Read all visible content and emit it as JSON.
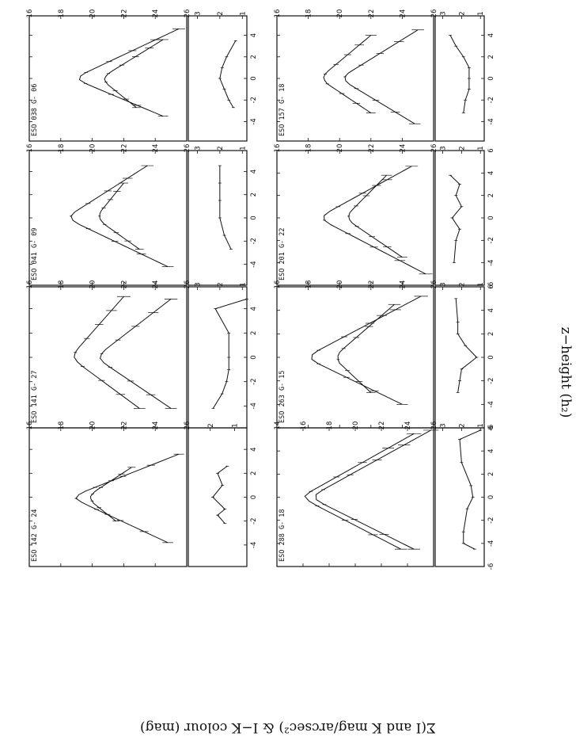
{
  "figure": {
    "xlabel": "z−height (h₂)",
    "ylabel": "Σ(I and K mag/arcsec²) & I−K colour (mag)"
  },
  "chart_data": [
    {
      "type": "line",
      "galaxy": "ESO 038 G- 06",
      "x_ticks": [
        -4,
        -2,
        0,
        2,
        4
      ],
      "xlim": [
        -5.8,
        5.8
      ],
      "top": {
        "ylim": [
          16,
          26
        ],
        "y_ticks": [
          16,
          18,
          20,
          22,
          24,
          26
        ],
        "ylim_inverted": true,
        "series": [
          {
            "peak": 18.8,
            "left": 24.5,
            "right": 25.5,
            "xmin": -3.5,
            "xmax": 4.6
          },
          {
            "peak": 20.5,
            "left": 22.8,
            "right": 24.5,
            "xmin": -2.7,
            "xmax": 3.6
          }
        ]
      },
      "bottom": {
        "ylim": [
          0.8,
          3.4
        ],
        "y_ticks": [
          1,
          2,
          3
        ],
        "colour": [
          [
            -2.7,
            1.4
          ],
          [
            -2,
            1.6
          ],
          [
            -1,
            1.8
          ],
          [
            0,
            2.0
          ],
          [
            1,
            1.9
          ],
          [
            2,
            1.7
          ],
          [
            3.5,
            1.3
          ]
        ]
      }
    },
    {
      "type": "line",
      "galaxy": "ESO 041 G- 09",
      "x_ticks": [
        -4,
        -2,
        0,
        2,
        4
      ],
      "xlim": [
        -5.8,
        5.8
      ],
      "top": {
        "ylim": [
          16,
          26
        ],
        "y_ticks": [
          16,
          18,
          20,
          22,
          24,
          26
        ],
        "ylim_inverted": true,
        "series": [
          {
            "peak": 18.3,
            "left": 24.8,
            "right": 23.5,
            "xmin": -4.2,
            "xmax": 4.5
          },
          {
            "peak": 20.2,
            "left": 23.0,
            "right": 22.0,
            "xmin": -2.7,
            "xmax": 3.0
          }
        ]
      },
      "bottom": {
        "ylim": [
          0.8,
          3.4
        ],
        "y_ticks": [
          1,
          2,
          3
        ],
        "colour": [
          [
            -2.7,
            1.5
          ],
          [
            -1.5,
            1.8
          ],
          [
            0,
            2.0
          ],
          [
            1.5,
            2.0
          ],
          [
            3,
            2.0
          ],
          [
            4.5,
            2.0
          ]
        ]
      }
    },
    {
      "type": "line",
      "galaxy": "ESO 141 G- 27",
      "x_ticks": [
        -4,
        -2,
        0,
        2,
        4
      ],
      "xlim": [
        -5.8,
        5.8
      ],
      "top": {
        "ylim": [
          16,
          26
        ],
        "y_ticks": [
          16,
          18,
          20,
          22,
          24,
          26
        ],
        "ylim_inverted": true,
        "series": [
          {
            "peak": 18.6,
            "left": 23.0,
            "right": 22.0,
            "xmin": -4.2,
            "xmax": 5.0
          },
          {
            "peak": 20.2,
            "left": 25.0,
            "right": 25.0,
            "xmin": -4.2,
            "xmax": 4.8
          }
        ]
      },
      "bottom": {
        "ylim": [
          0.8,
          3.4
        ],
        "y_ticks": [
          1,
          2,
          3
        ],
        "colour": [
          [
            -4.2,
            2.3
          ],
          [
            -3,
            1.9
          ],
          [
            -2,
            1.7
          ],
          [
            -1,
            1.6
          ],
          [
            0,
            1.6
          ],
          [
            2,
            1.6
          ],
          [
            4,
            2.2
          ],
          [
            4.8,
            0.8
          ]
        ]
      }
    },
    {
      "type": "line",
      "galaxy": "ESO 142 G- 24",
      "x_ticks": [
        -4,
        -2,
        0,
        2,
        4
      ],
      "xlim": [
        -5.8,
        5.8
      ],
      "top": {
        "ylim": [
          16,
          26
        ],
        "y_ticks": [
          16,
          18,
          20,
          22,
          24,
          26
        ],
        "ylim_inverted": true,
        "series": [
          {
            "peak": 18.6,
            "left": 24.8,
            "right": 25.5,
            "xmin": -3.8,
            "xmax": 3.6
          },
          {
            "peak": 19.6,
            "left": 21.5,
            "right": 22.5,
            "xmin": -2.0,
            "xmax": 2.5
          }
        ]
      },
      "bottom": {
        "ylim": [
          0.5,
          2.9
        ],
        "y_ticks": [
          1,
          2
        ],
        "colour": [
          [
            -2.2,
            1.4
          ],
          [
            -1.5,
            1.7
          ],
          [
            -1,
            1.4
          ],
          [
            0,
            1.9
          ],
          [
            1,
            1.5
          ],
          [
            2,
            1.7
          ],
          [
            2.6,
            1.3
          ]
        ]
      }
    },
    {
      "type": "line",
      "galaxy": "ESO 157 G- 18",
      "x_ticks": [
        -4,
        -2,
        0,
        2,
        4
      ],
      "xlim": [
        -5.8,
        5.8
      ],
      "top": {
        "ylim": [
          16,
          26
        ],
        "y_ticks": [
          16,
          18,
          20,
          22,
          24,
          26
        ],
        "ylim_inverted": true,
        "series": [
          {
            "peak": 18.7,
            "left": 22.0,
            "right": 22.0,
            "xmin": -3.2,
            "xmax": 4.0
          },
          {
            "peak": 20.0,
            "left": 24.8,
            "right": 25.0,
            "xmin": -4.2,
            "xmax": 4.5
          }
        ]
      },
      "bottom": {
        "ylim": [
          0.8,
          3.4
        ],
        "y_ticks": [
          1,
          2,
          3
        ],
        "colour": [
          [
            -3.2,
            1.9
          ],
          [
            -2,
            1.8
          ],
          [
            -1,
            1.6
          ],
          [
            0,
            1.6
          ],
          [
            1,
            1.6
          ],
          [
            2,
            1.9
          ],
          [
            3,
            2.3
          ],
          [
            4,
            2.6
          ]
        ]
      }
    },
    {
      "type": "line",
      "galaxy": "ESO 201 G- 22",
      "x_ticks": [
        -6,
        -4,
        -2,
        0,
        2,
        4,
        6
      ],
      "xlim": [
        -6,
        6
      ],
      "top": {
        "ylim": [
          16,
          26
        ],
        "y_ticks": [
          16,
          18,
          20,
          22,
          24,
          26
        ],
        "ylim_inverted": true,
        "series": [
          {
            "peak": 18.6,
            "left": 25.5,
            "right": 24.6,
            "xmin": -5.0,
            "xmax": 4.6
          },
          {
            "peak": 20.3,
            "left": 24.0,
            "right": 23.0,
            "xmin": -3.5,
            "xmax": 3.8
          }
        ]
      },
      "bottom": {
        "ylim": [
          0.8,
          3.4
        ],
        "y_ticks": [
          1,
          2,
          3
        ],
        "colour": [
          [
            -4,
            2.4
          ],
          [
            -2,
            2.3
          ],
          [
            -1,
            2.1
          ],
          [
            0,
            2.5
          ],
          [
            1,
            2.0
          ],
          [
            2,
            2.3
          ],
          [
            3,
            2.1
          ],
          [
            3.8,
            2.6
          ]
        ]
      }
    },
    {
      "type": "line",
      "galaxy": "ESO 263 G- 15",
      "x_ticks": [
        -6,
        -4,
        -2,
        0,
        2,
        4,
        6
      ],
      "xlim": [
        -6,
        6
      ],
      "top": {
        "ylim": [
          16,
          26
        ],
        "y_ticks": [
          16,
          18,
          20,
          22,
          24,
          26
        ],
        "ylim_inverted": true,
        "series": [
          {
            "peak": 17.8,
            "left": 24.0,
            "right": 25.2,
            "xmin": -4.0,
            "xmax": 5.2
          },
          {
            "peak": 19.6,
            "left": 22.0,
            "right": 23.5,
            "xmin": -3.0,
            "xmax": 4.5
          }
        ]
      },
      "bottom": {
        "ylim": [
          0.8,
          3.4
        ],
        "y_ticks": [
          1,
          2,
          3
        ],
        "colour": [
          [
            -3,
            2.2
          ],
          [
            -2,
            2.1
          ],
          [
            -1,
            2.0
          ],
          [
            0,
            1.2
          ],
          [
            1,
            1.8
          ],
          [
            2,
            2.2
          ],
          [
            3,
            2.2
          ],
          [
            5,
            2.3
          ]
        ]
      }
    },
    {
      "type": "line",
      "galaxy": "ESO 288 G- 18",
      "x_ticks": [
        -6,
        -4,
        -2,
        0,
        2,
        4,
        6
      ],
      "xlim": [
        -6,
        6
      ],
      "top": {
        "ylim": [
          14,
          26
        ],
        "y_ticks": [
          14,
          16,
          18,
          20,
          22,
          24,
          26
        ],
        "ylim_inverted": true,
        "series": [
          {
            "peak": 15.8,
            "left": 23.5,
            "right": 24.5,
            "xmin": -4.5,
            "xmax": 5.5
          },
          {
            "peak": 16.5,
            "left": 24.5,
            "right": 25.8,
            "xmin": -4.5,
            "xmax": 5.8
          }
        ]
      },
      "bottom": {
        "ylim": [
          0.8,
          3.4
        ],
        "y_ticks": [
          1,
          2,
          3
        ],
        "colour": [
          [
            -4.5,
            1.3
          ],
          [
            -4,
            1.9
          ],
          [
            -3,
            1.9
          ],
          [
            -1,
            1.7
          ],
          [
            0,
            1.4
          ],
          [
            1,
            1.5
          ],
          [
            3,
            2.0
          ],
          [
            5,
            2.1
          ],
          [
            5.8,
            1.0
          ]
        ]
      }
    }
  ]
}
